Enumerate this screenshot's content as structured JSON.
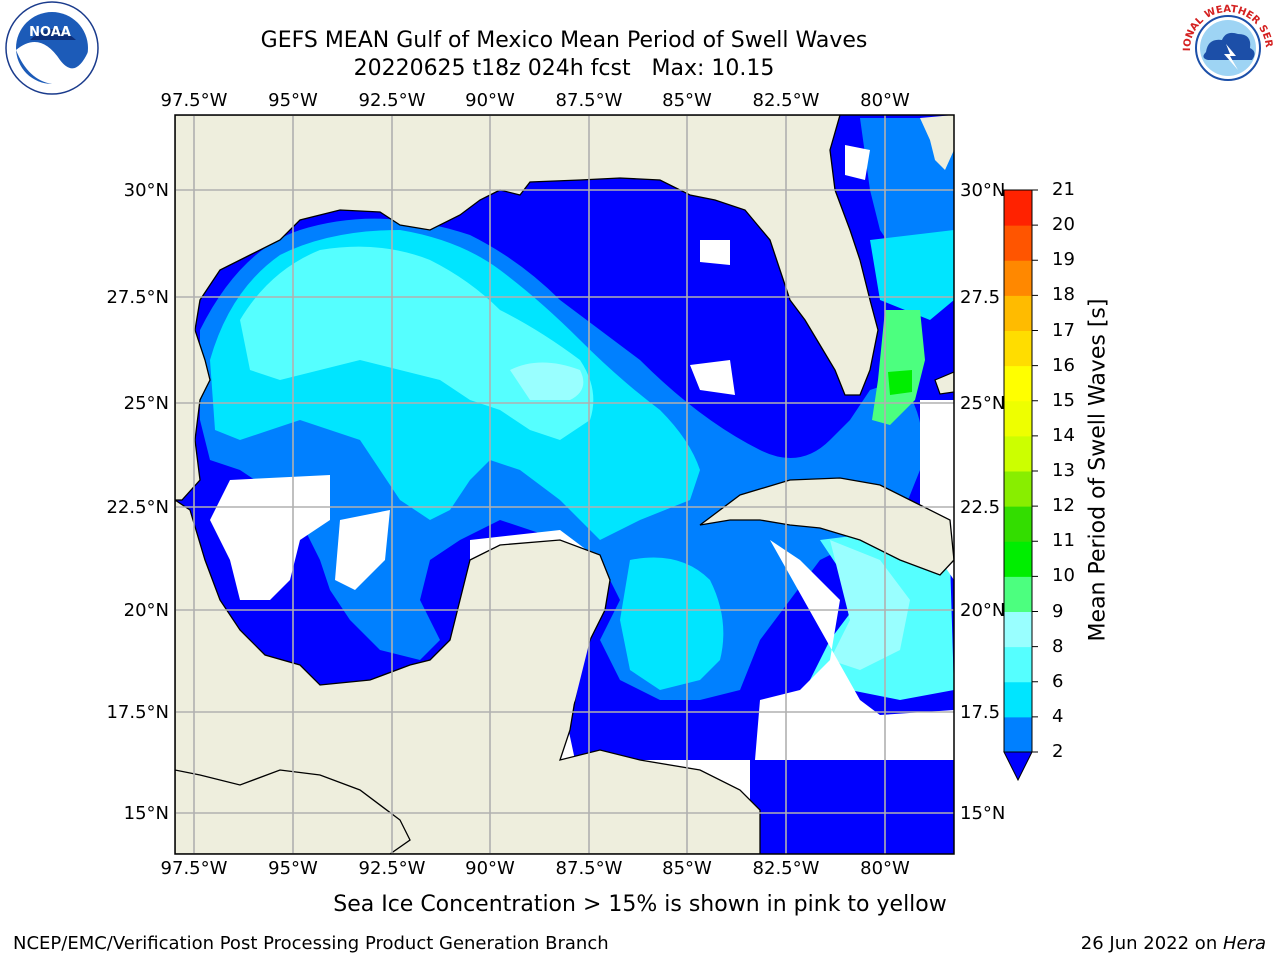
{
  "title": {
    "line1": "GEFS MEAN Gulf of Mexico Mean Period of Swell Waves",
    "line2": "20220625 t18z 024h fcst   Max: 10.15"
  },
  "map": {
    "lon_labels": [
      "97.5°W",
      "95°W",
      "92.5°W",
      "90°W",
      "87.5°W",
      "85°W",
      "82.5°W",
      "80°W"
    ],
    "lat_labels_left": [
      "30°N",
      "27.5°N",
      "25°N",
      "22.5°N",
      "20°N",
      "17.5°N",
      "15°N"
    ],
    "lat_labels_right": [
      "30°N",
      "27.5",
      "25°N",
      "22.5",
      "20°N",
      "17.5",
      "15°N"
    ],
    "colors": {
      "land": "#eeeedd",
      "water_missing": "#ffffff",
      "grid": "#b0b0b0",
      "coast": "#000000"
    }
  },
  "colorbar": {
    "title": "Mean Period of Swell Waves [s]",
    "ticks": [
      "2",
      "4",
      "6",
      "8",
      "9",
      "10",
      "11",
      "12",
      "13",
      "14",
      "15",
      "16",
      "17",
      "18",
      "19",
      "20",
      "21"
    ],
    "colors": [
      "#0000ff",
      "#0080ff",
      "#00e5ff",
      "#55ffff",
      "#99ffff",
      "#4cff7f",
      "#00ee00",
      "#33dd00",
      "#88ee00",
      "#ccff00",
      "#eeff00",
      "#ffff00",
      "#ffdd00",
      "#ffbb00",
      "#ff8800",
      "#ff5500",
      "#ff2200",
      "#ff0000"
    ]
  },
  "caption": "Sea Ice Concentration > 15% is shown in pink to yellow",
  "footer": {
    "left": "NCEP/EMC/Verification Post Processing Product Generation Branch",
    "right_prefix": "26 Jun 2022 on ",
    "right_host": "Hera"
  },
  "logos": {
    "left": "NOAA",
    "right": "NATIONAL WEATHER SERVICE"
  }
}
